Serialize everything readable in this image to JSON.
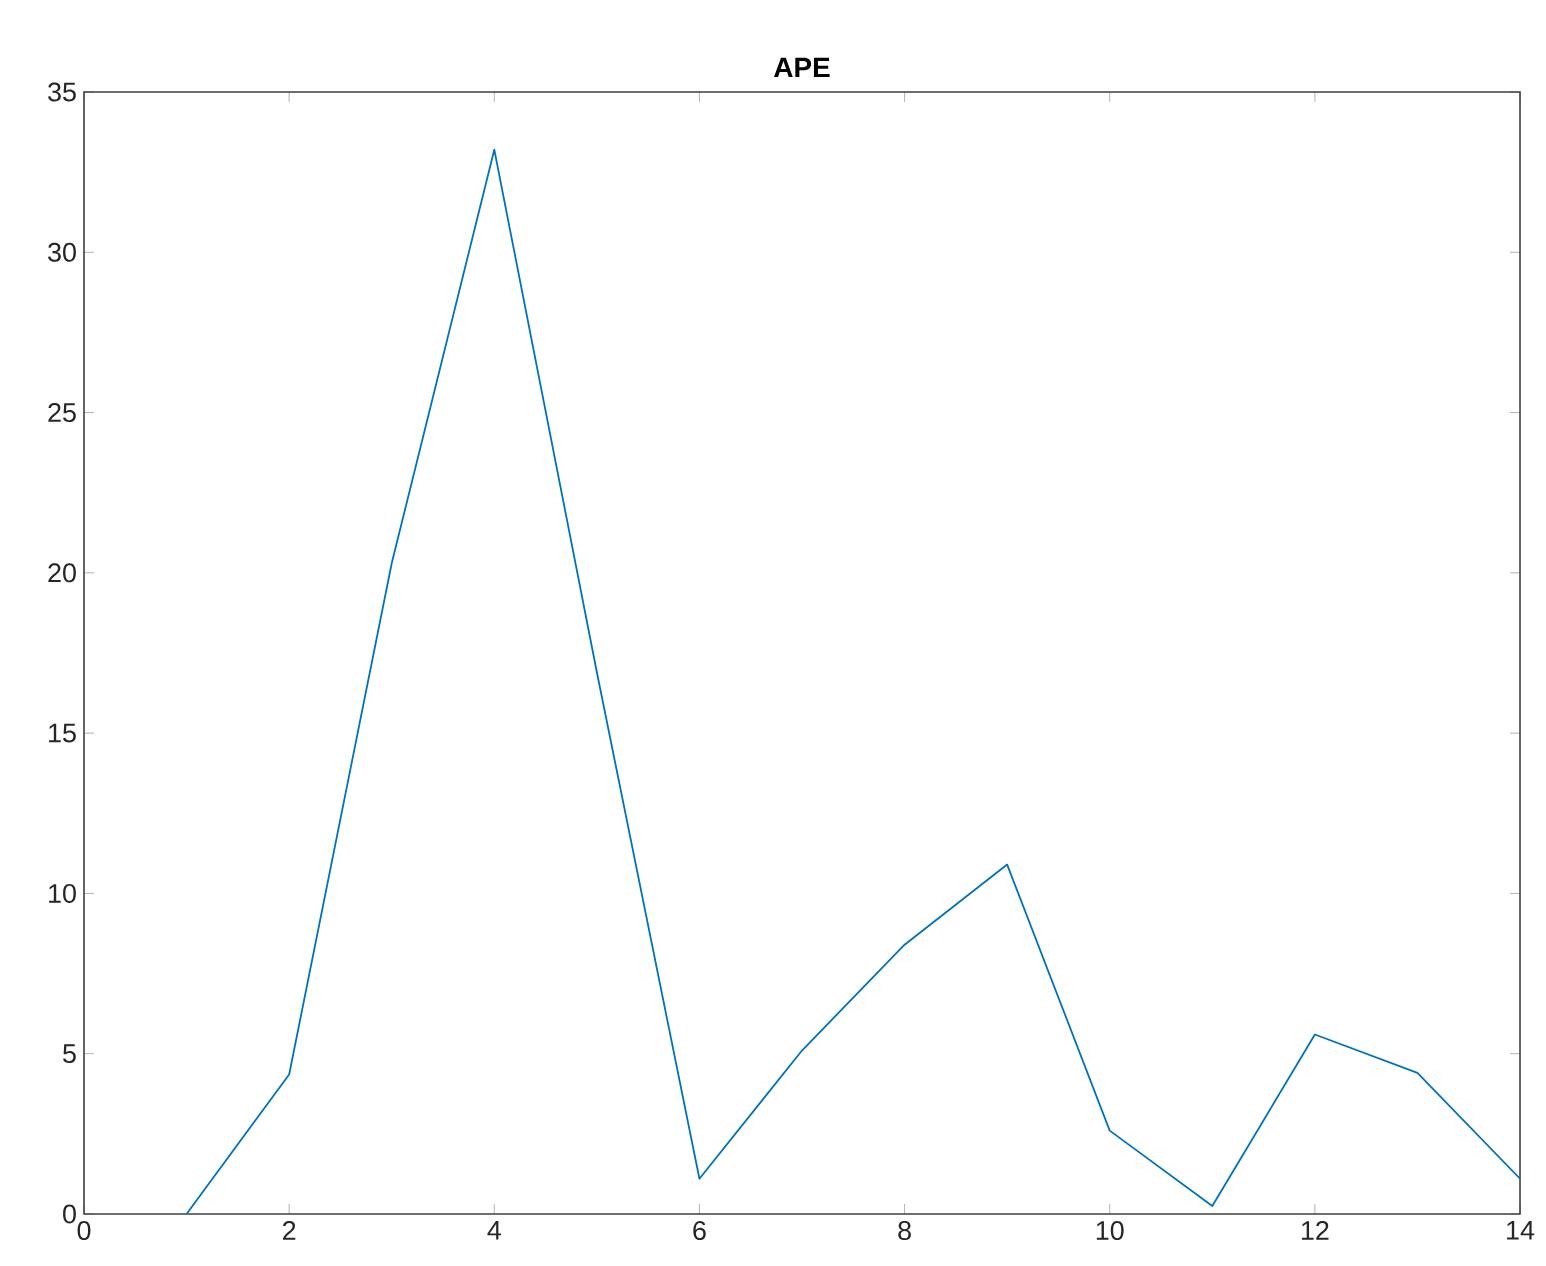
{
  "chart_data": {
    "type": "line",
    "title": "APE",
    "x": [
      1,
      2,
      3,
      4,
      5,
      6,
      7,
      8,
      9,
      10,
      11,
      12,
      13,
      14
    ],
    "series": [
      {
        "color": "#0072bd",
        "values": [
          0,
          4.35,
          20.3,
          33.2,
          16.9,
          1.1,
          5.1,
          8.4,
          10.9,
          2.6,
          0.25,
          5.6,
          4.4,
          1.1
        ]
      }
    ],
    "xlim": [
      0,
      14
    ],
    "xticks": [
      0,
      2,
      4,
      6,
      8,
      10,
      12,
      14
    ],
    "ylim": [
      0,
      35
    ],
    "yticks": [
      0,
      5,
      10,
      15,
      20,
      25,
      30,
      35
    ],
    "marker": "none",
    "line_style": "solid"
  }
}
